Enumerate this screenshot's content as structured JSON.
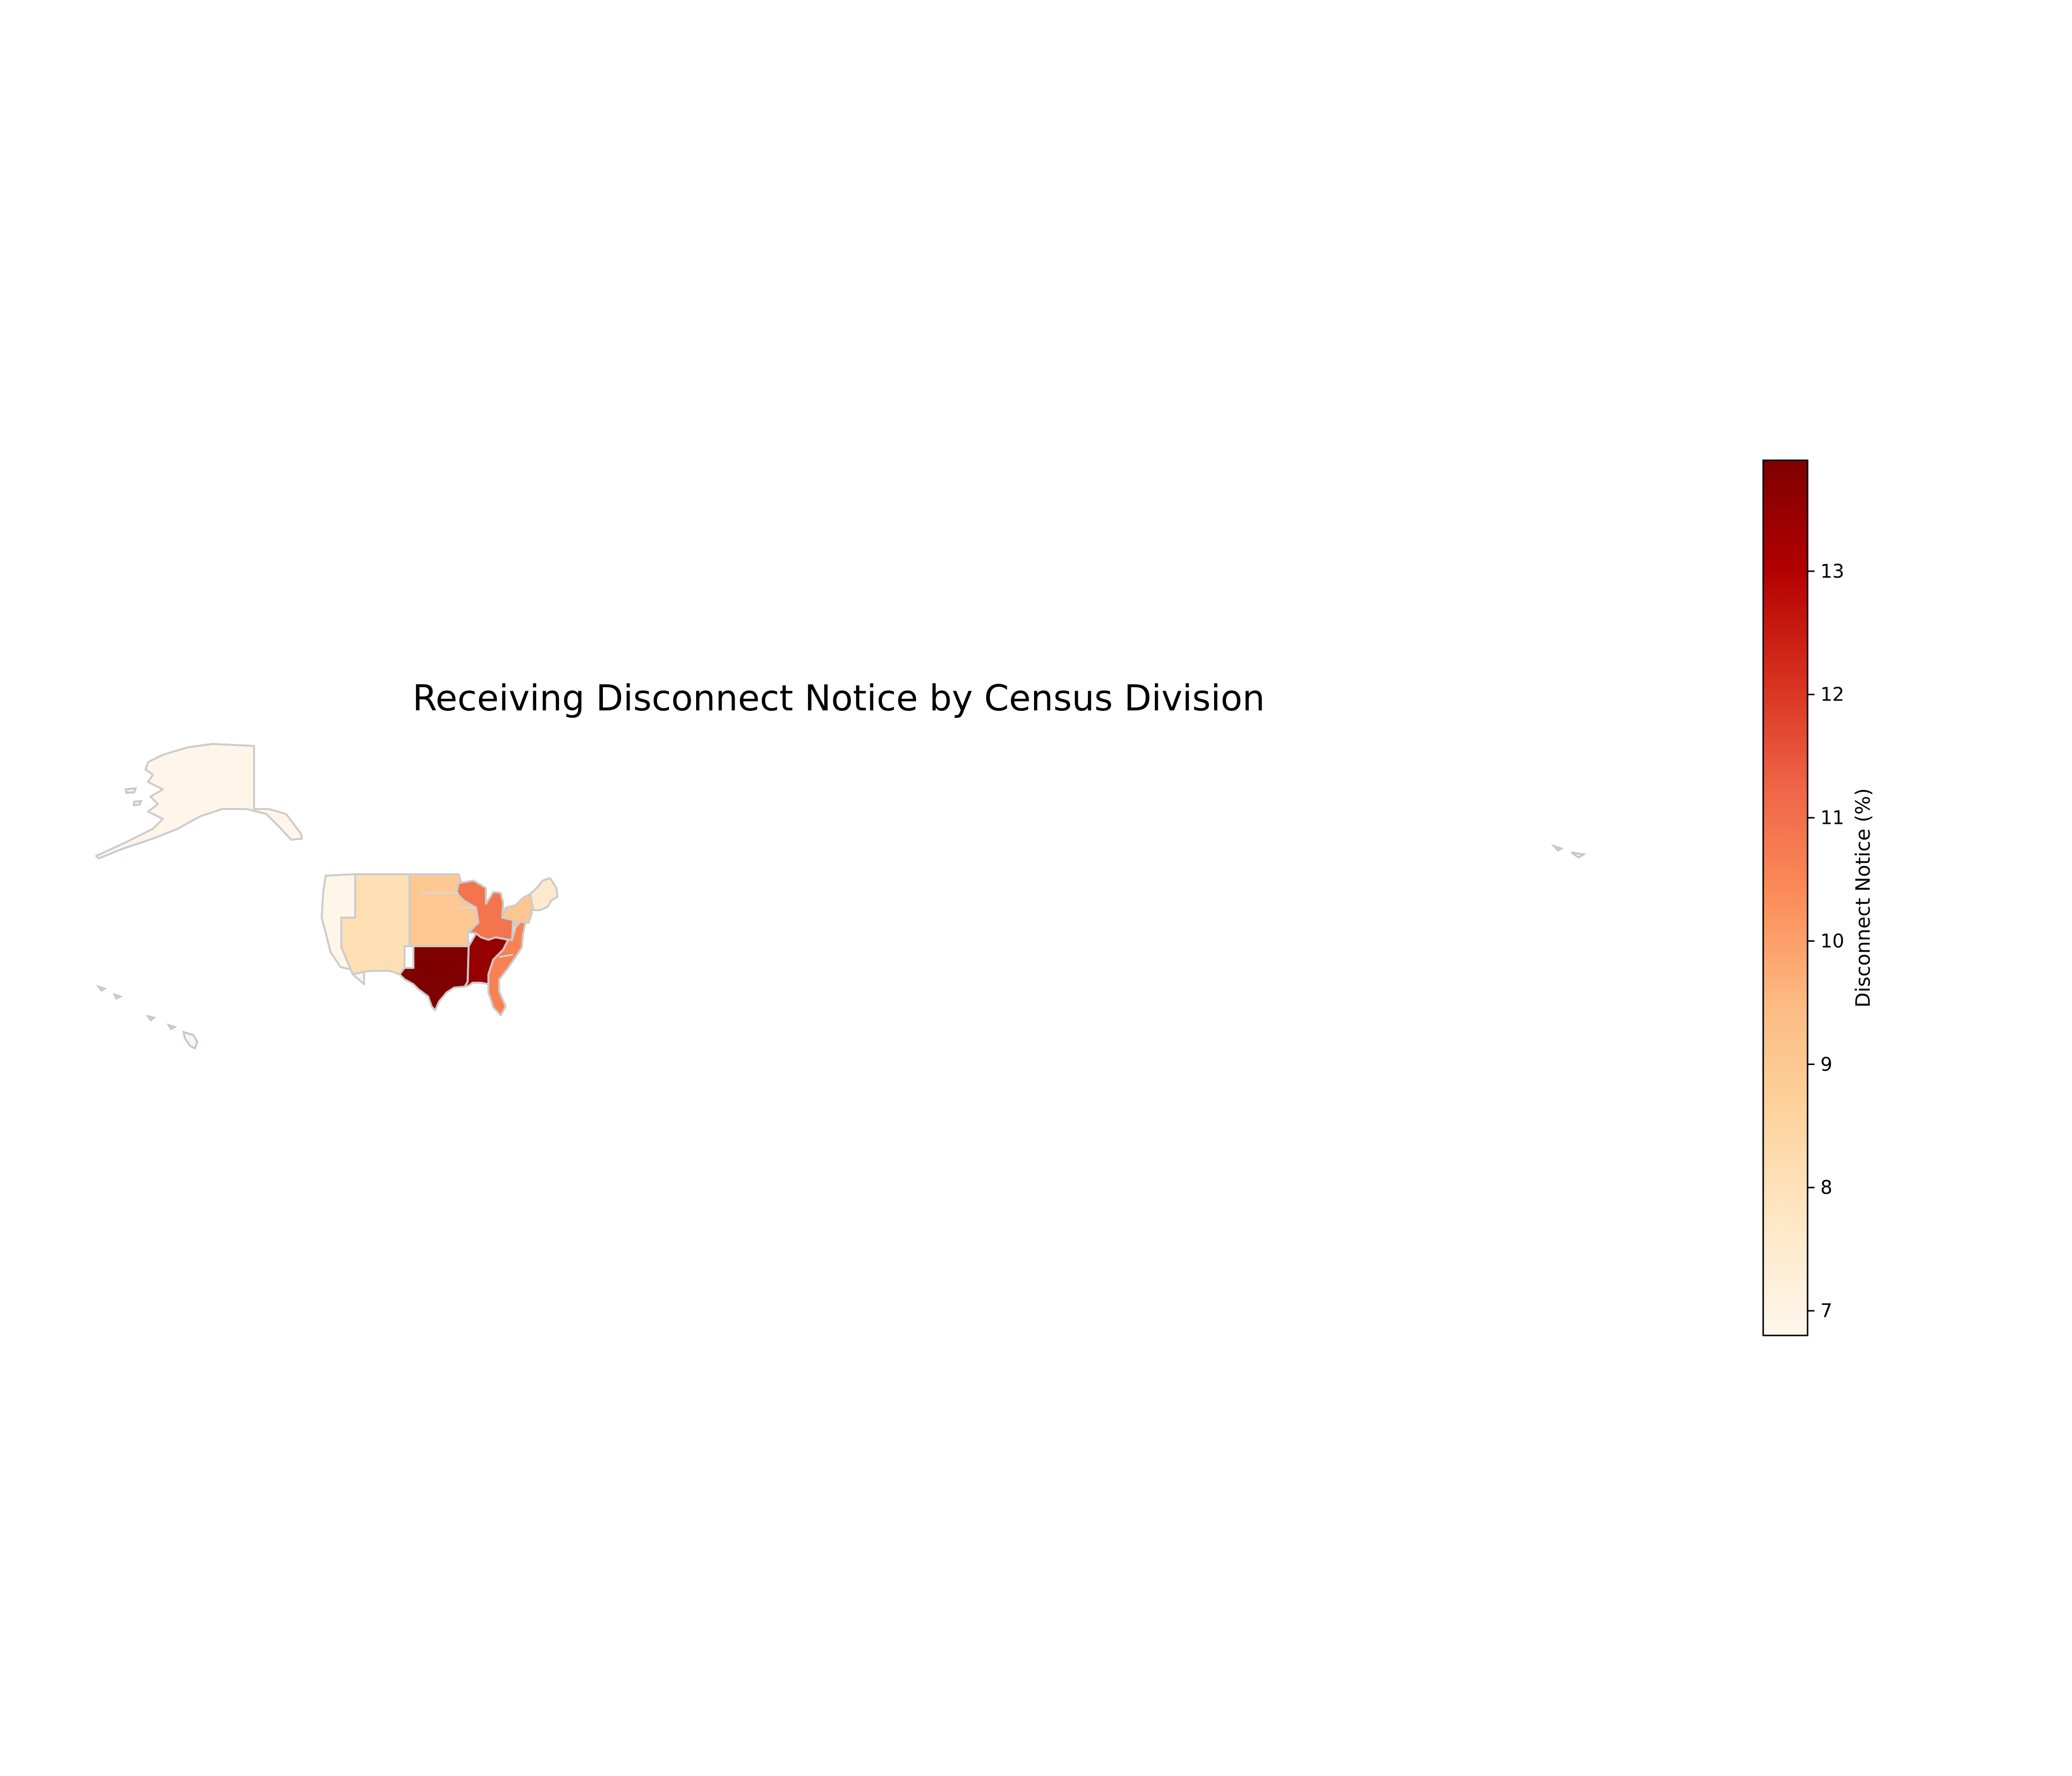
{
  "chart_data": {
    "type": "choropleth",
    "title": "Receiving Disconnect Notice by Census Division",
    "colorbar": {
      "label": "Disconnect Notice (%)",
      "range": [
        6.8,
        13.9
      ],
      "ticks": [
        7,
        8,
        9,
        10,
        11,
        12,
        13
      ],
      "colormap": "OrRd",
      "placement": "right"
    },
    "regions": [
      {
        "name": "Pacific",
        "value": 6.9
      },
      {
        "name": "Mountain",
        "value": 8.1
      },
      {
        "name": "West North Central",
        "value": 9.0
      },
      {
        "name": "West South Central",
        "value": 13.9
      },
      {
        "name": "East North Central",
        "value": 10.9
      },
      {
        "name": "East South Central",
        "value": 13.5
      },
      {
        "name": "South Atlantic",
        "value": 10.6
      },
      {
        "name": "Middle Atlantic",
        "value": 9.1
      },
      {
        "name": "New England",
        "value": 7.6
      }
    ]
  }
}
